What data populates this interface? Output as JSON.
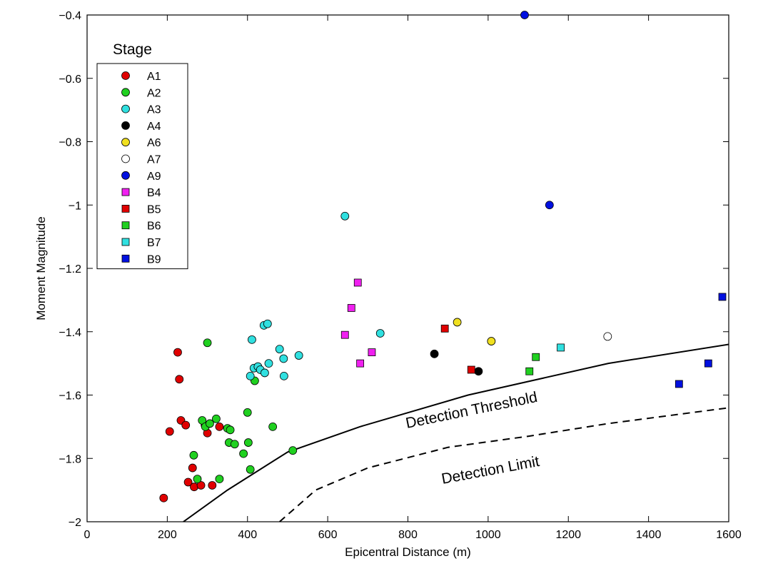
{
  "chart_data": {
    "type": "scatter",
    "title": "",
    "xlabel": "Epicentral Distance (m)",
    "ylabel": "Moment Magnitude",
    "xlim": [
      0,
      1600
    ],
    "ylim": [
      -2,
      -0.4
    ],
    "xticks": [
      0,
      200,
      400,
      600,
      800,
      1000,
      1200,
      1400,
      1600
    ],
    "yticks": [
      -2,
      -1.8,
      -1.6,
      -1.4,
      -1.2,
      -1,
      -0.8,
      -0.6,
      -0.4
    ],
    "xtick_labels": [
      "0",
      "200",
      "400",
      "600",
      "800",
      "1000",
      "1200",
      "1400",
      "1600"
    ],
    "ytick_labels": [
      "−2",
      "−1.8",
      "−1.6",
      "−1.4",
      "−1.2",
      "−1",
      "−0.8",
      "−0.6",
      "−0.4"
    ],
    "grid": false,
    "legend": {
      "title": "Stage",
      "position": "top-left"
    },
    "series": [
      {
        "name": "A1",
        "marker": "circle",
        "color": "#e00000",
        "filled": true,
        "points": [
          [
            191,
            -1.925
          ],
          [
            206,
            -1.715
          ],
          [
            226,
            -1.465
          ],
          [
            230,
            -1.55
          ],
          [
            234,
            -1.68
          ],
          [
            246,
            -1.695
          ],
          [
            252,
            -1.875
          ],
          [
            263,
            -1.83
          ],
          [
            267,
            -1.89
          ],
          [
            284,
            -1.885
          ],
          [
            294,
            -1.695
          ],
          [
            300,
            -1.72
          ],
          [
            312,
            -1.885
          ],
          [
            330,
            -1.7
          ]
        ]
      },
      {
        "name": "A2",
        "marker": "circle",
        "color": "#20d020",
        "filled": true,
        "points": [
          [
            266,
            -1.79
          ],
          [
            275,
            -1.865
          ],
          [
            287,
            -1.68
          ],
          [
            295,
            -1.7
          ],
          [
            300,
            -1.435
          ],
          [
            306,
            -1.69
          ],
          [
            322,
            -1.675
          ],
          [
            330,
            -1.865
          ],
          [
            350,
            -1.705
          ],
          [
            354,
            -1.75
          ],
          [
            357,
            -1.71
          ],
          [
            368,
            -1.755
          ],
          [
            390,
            -1.785
          ],
          [
            400,
            -1.655
          ],
          [
            402,
            -1.75
          ],
          [
            407,
            -1.835
          ],
          [
            418,
            -1.555
          ],
          [
            463,
            -1.7
          ],
          [
            513,
            -1.775
          ]
        ]
      },
      {
        "name": "A3",
        "marker": "circle",
        "color": "#30e0e0",
        "filled": true,
        "points": [
          [
            407,
            -1.54
          ],
          [
            411,
            -1.425
          ],
          [
            416,
            -1.515
          ],
          [
            426,
            -1.51
          ],
          [
            432,
            -1.52
          ],
          [
            441,
            -1.38
          ],
          [
            443,
            -1.53
          ],
          [
            450,
            -1.375
          ],
          [
            453,
            -1.5
          ],
          [
            480,
            -1.455
          ],
          [
            490,
            -1.485
          ],
          [
            491,
            -1.54
          ],
          [
            528,
            -1.475
          ],
          [
            643,
            -1.035
          ],
          [
            731,
            -1.405
          ]
        ]
      },
      {
        "name": "A4",
        "marker": "circle",
        "color": "#000000",
        "filled": true,
        "points": [
          [
            866,
            -1.47
          ],
          [
            976,
            -1.525
          ]
        ]
      },
      {
        "name": "A6",
        "marker": "circle",
        "color": "#f0e020",
        "filled": true,
        "points": [
          [
            923,
            -1.37
          ],
          [
            1008,
            -1.43
          ]
        ]
      },
      {
        "name": "A7",
        "marker": "circle",
        "color": "#ffffff",
        "filled": false,
        "points": [
          [
            1298,
            -1.415
          ]
        ]
      },
      {
        "name": "A9",
        "marker": "circle",
        "color": "#0010e0",
        "filled": true,
        "points": [
          [
            1091,
            -0.4
          ],
          [
            1153,
            -1.0
          ]
        ]
      },
      {
        "name": "B4",
        "marker": "square",
        "color": "#f020f0",
        "filled": true,
        "points": [
          [
            643,
            -1.41
          ],
          [
            659,
            -1.325
          ],
          [
            675,
            -1.245
          ],
          [
            681,
            -1.5
          ],
          [
            710,
            -1.465
          ]
        ]
      },
      {
        "name": "B5",
        "marker": "square",
        "color": "#e00000",
        "filled": true,
        "points": [
          [
            892,
            -1.39
          ],
          [
            958,
            -1.52
          ]
        ]
      },
      {
        "name": "B6",
        "marker": "square",
        "color": "#20d020",
        "filled": true,
        "points": [
          [
            1103,
            -1.525
          ],
          [
            1119,
            -1.48
          ]
        ]
      },
      {
        "name": "B7",
        "marker": "square",
        "color": "#30e0e0",
        "filled": true,
        "points": [
          [
            1181,
            -1.45
          ]
        ]
      },
      {
        "name": "B9",
        "marker": "square",
        "color": "#0010e0",
        "filled": true,
        "points": [
          [
            1476,
            -1.565
          ],
          [
            1549,
            -1.5
          ],
          [
            1584,
            -1.29
          ]
        ]
      }
    ],
    "curves": [
      {
        "name": "Detection Threshold",
        "style": "solid",
        "points": [
          [
            240,
            -2.0
          ],
          [
            350,
            -1.9
          ],
          [
            500,
            -1.78
          ],
          [
            680,
            -1.7
          ],
          [
            950,
            -1.6
          ],
          [
            1300,
            -1.5
          ],
          [
            1600,
            -1.44
          ]
        ]
      },
      {
        "name": "Detection Limit",
        "style": "dashed",
        "points": [
          [
            480,
            -2.0
          ],
          [
            570,
            -1.9
          ],
          [
            700,
            -1.83
          ],
          [
            900,
            -1.765
          ],
          [
            1100,
            -1.73
          ],
          [
            1300,
            -1.69
          ],
          [
            1600,
            -1.64
          ]
        ]
      }
    ]
  }
}
